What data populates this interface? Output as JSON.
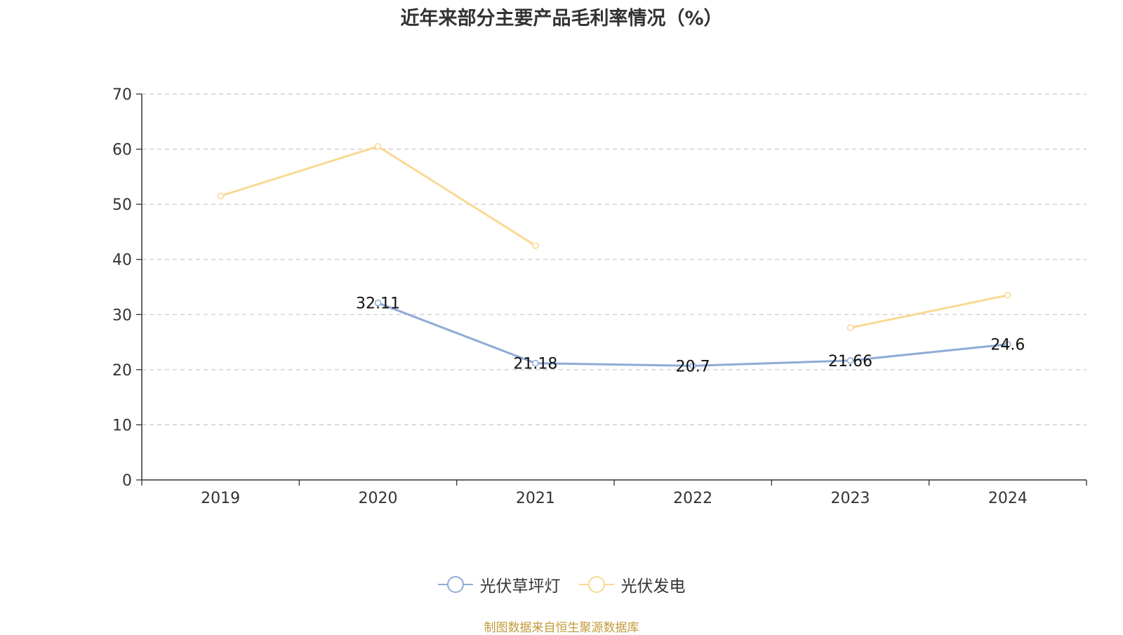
{
  "chart_data": {
    "type": "line",
    "title": "近年来部分主要产品毛利率情况（%）",
    "categories": [
      "2019",
      "2020",
      "2021",
      "2022",
      "2023",
      "2024"
    ],
    "ylim": [
      0,
      70
    ],
    "yticks": [
      "0",
      "10",
      "20",
      "30",
      "40",
      "50",
      "60",
      "70"
    ],
    "grid": true,
    "legend_position": "bottom-center",
    "series": [
      {
        "name": "光伏草坪灯",
        "color": "#8fabd6",
        "values": [
          null,
          32.11,
          21.18,
          20.7,
          21.66,
          24.6
        ],
        "labels": [
          "",
          "32.11",
          "21.18",
          "20.7",
          "21.66",
          "24.6"
        ]
      },
      {
        "name": "光伏发电",
        "color": "#f9d993",
        "values": [
          51.5,
          60.5,
          42.5,
          null,
          27.6,
          33.5
        ],
        "labels": [
          "",
          "",
          "",
          "",
          "",
          ""
        ]
      }
    ]
  },
  "footer": {
    "source": "制图数据来自恒生聚源数据库"
  }
}
